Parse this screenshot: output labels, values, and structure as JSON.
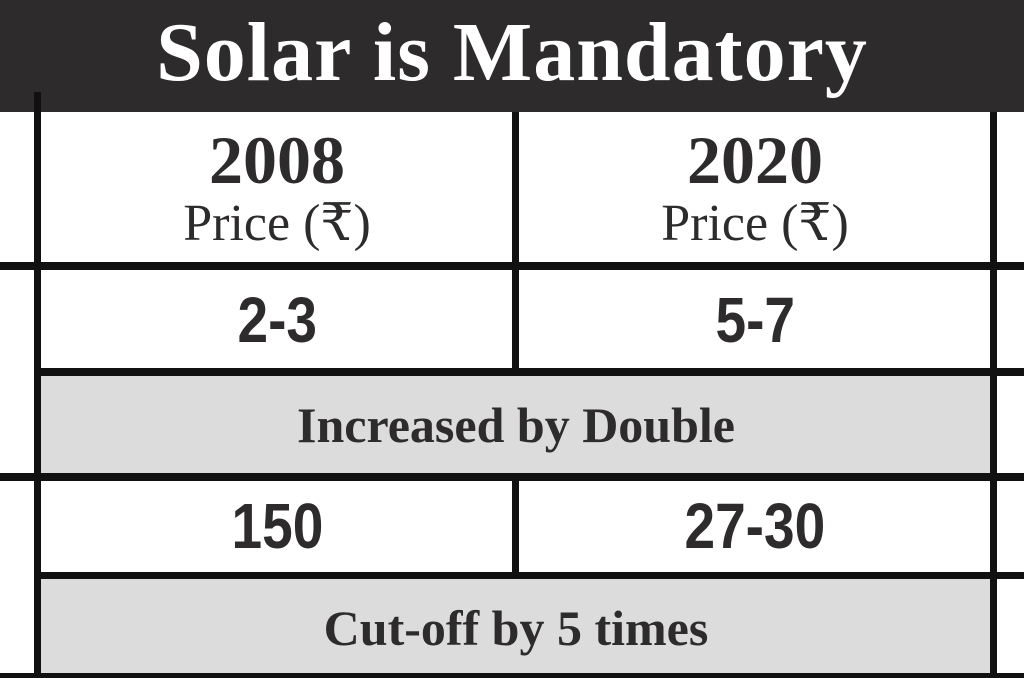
{
  "banner": {
    "title": "Solar is Mandatory",
    "background": "#2d2b2c"
  },
  "table": {
    "columns": [
      {
        "year": "2008",
        "label": "Price (₹)"
      },
      {
        "year": "2020",
        "label": "Price (₹)"
      }
    ],
    "rows": [
      {
        "values": [
          "2-3",
          "5-7"
        ],
        "note": "Increased by Double"
      },
      {
        "values": [
          "150",
          "27-30"
        ],
        "note": "Cut-off by 5 times"
      }
    ],
    "note_background": "#dcdcdd",
    "text_color": "#2d2b2c"
  }
}
